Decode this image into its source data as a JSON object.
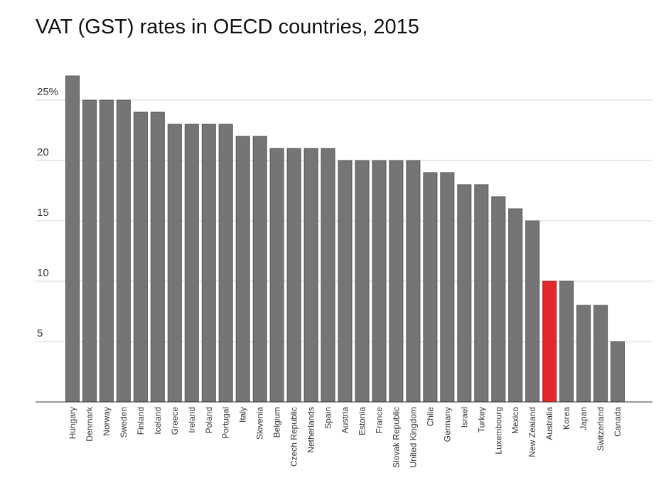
{
  "chart_data": {
    "type": "bar",
    "title": "VAT (GST) rates in OECD countries, 2015",
    "xlabel": "",
    "ylabel": "",
    "ylim": [
      0,
      27
    ],
    "grid": true,
    "yticks": [
      {
        "value": 5,
        "label": "5"
      },
      {
        "value": 10,
        "label": "10"
      },
      {
        "value": 15,
        "label": "15"
      },
      {
        "value": 20,
        "label": "20"
      },
      {
        "value": 25,
        "label": "25%"
      }
    ],
    "categories": [
      "Hungary",
      "Denmark",
      "Norway",
      "Sweden",
      "Finland",
      "Iceland",
      "Greece",
      "Ireland",
      "Poland",
      "Portugal",
      "Italy",
      "Slovenia",
      "Belgium",
      "Czech Republic",
      "Netherlands",
      "Spain",
      "Austria",
      "Estonia",
      "France",
      "Slovak Republic",
      "United Kingdom",
      "Chile",
      "Germany",
      "Israel",
      "Turkey",
      "Luxembourg",
      "Mexico",
      "New Zealand",
      "Australia",
      "Korea",
      "Japan",
      "Switzerland",
      "Canada"
    ],
    "values": [
      27,
      25,
      25,
      25,
      24,
      24,
      23,
      23,
      23,
      23,
      22,
      22,
      21,
      21,
      21,
      21,
      20,
      20,
      20,
      20,
      20,
      19,
      19,
      18,
      18,
      17,
      16,
      15,
      10,
      10,
      8,
      8,
      5
    ],
    "bar_color": "#757575",
    "highlight_color": "#e32a2a",
    "highlight_category": "Australia"
  }
}
